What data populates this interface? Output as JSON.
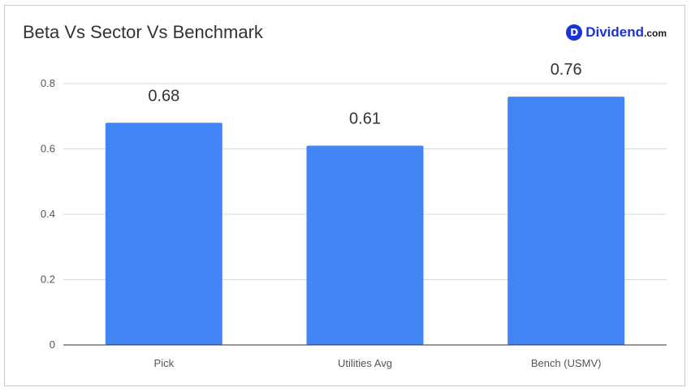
{
  "logo": {
    "mark": "D",
    "word": "Dividend",
    "tld": ".com"
  },
  "chart_data": {
    "type": "bar",
    "title": "Beta Vs Sector Vs Benchmark",
    "xlabel": "",
    "ylabel": "",
    "categories": [
      "Pick",
      "Utilities Avg",
      "Bench (USMV)"
    ],
    "values": [
      0.68,
      0.61,
      0.76
    ],
    "data_labels": [
      "0.68",
      "0.61",
      "0.76"
    ],
    "ylim": [
      0,
      0.8
    ],
    "yticks": [
      0,
      0.2,
      0.4,
      0.6,
      0.8
    ],
    "ytick_labels": [
      "0",
      "0.2",
      "0.4",
      "0.6",
      "0.8"
    ],
    "grid": true,
    "legend": "none",
    "bar_color": "#4285f4",
    "grid_color": "#d9d9d9",
    "axis_color": "#333333"
  }
}
